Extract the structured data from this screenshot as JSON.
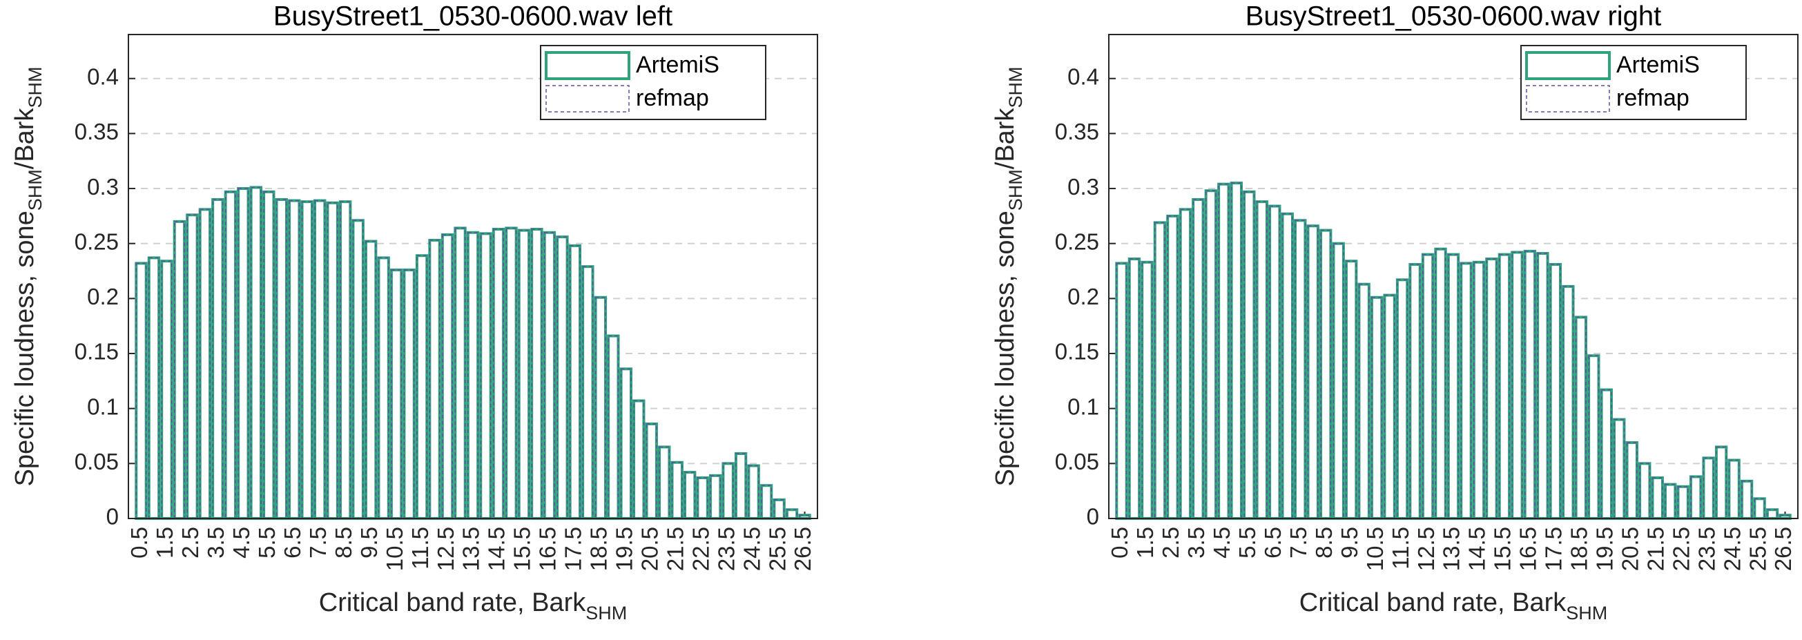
{
  "chart_data": [
    {
      "type": "bar",
      "title": "BusyStreet1_0530-0600.wav left",
      "xlabel": [
        "Critical band rate, Bark",
        "SHM"
      ],
      "ylabel": [
        "Specific loudness, sone",
        "SHM",
        "/Bark",
        "SHM"
      ],
      "x": [
        0.5,
        1,
        1.5,
        2,
        2.5,
        3,
        3.5,
        4,
        4.5,
        5,
        5.5,
        6,
        6.5,
        7,
        7.5,
        8,
        8.5,
        9,
        9.5,
        10,
        10.5,
        11,
        11.5,
        12,
        12.5,
        13,
        13.5,
        14,
        14.5,
        15,
        15.5,
        16,
        16.5,
        17,
        17.5,
        18,
        18.5,
        19,
        19.5,
        20,
        20.5,
        21,
        21.5,
        22,
        22.5,
        23,
        23.5,
        24,
        24.5,
        25,
        25.5,
        26,
        26.5
      ],
      "series": [
        {
          "name": "ArtemiS",
          "color": "#2fa37c",
          "values": [
            0.232,
            0.237,
            0.234,
            0.27,
            0.276,
            0.281,
            0.29,
            0.297,
            0.3,
            0.301,
            0.297,
            0.29,
            0.289,
            0.288,
            0.289,
            0.287,
            0.288,
            0.271,
            0.252,
            0.237,
            0.226,
            0.226,
            0.239,
            0.253,
            0.258,
            0.264,
            0.26,
            0.259,
            0.263,
            0.264,
            0.262,
            0.263,
            0.26,
            0.256,
            0.248,
            0.229,
            0.201,
            0.166,
            0.136,
            0.107,
            0.086,
            0.065,
            0.051,
            0.042,
            0.037,
            0.039,
            0.05,
            0.059,
            0.048,
            0.03,
            0.017,
            0.008,
            0.003
          ]
        },
        {
          "name": "refmap",
          "color": "#5e4fa2",
          "values": [
            0.232,
            0.237,
            0.234,
            0.27,
            0.276,
            0.281,
            0.29,
            0.297,
            0.3,
            0.301,
            0.297,
            0.29,
            0.289,
            0.288,
            0.289,
            0.287,
            0.288,
            0.271,
            0.252,
            0.237,
            0.226,
            0.226,
            0.239,
            0.253,
            0.258,
            0.264,
            0.26,
            0.259,
            0.263,
            0.264,
            0.262,
            0.263,
            0.26,
            0.256,
            0.248,
            0.229,
            0.201,
            0.166,
            0.136,
            0.107,
            0.086,
            0.065,
            0.051,
            0.042,
            0.037,
            0.039,
            0.05,
            0.059,
            0.048,
            0.03,
            0.017,
            0.008,
            0.003
          ]
        }
      ],
      "xlim": [
        0,
        27
      ],
      "ylim": [
        0,
        0.44
      ],
      "xticks": [
        0.5,
        1.5,
        2.5,
        3.5,
        4.5,
        5.5,
        6.5,
        7.5,
        8.5,
        9.5,
        10.5,
        11.5,
        12.5,
        13.5,
        14.5,
        15.5,
        16.5,
        17.5,
        18.5,
        19.5,
        20.5,
        21.5,
        22.5,
        23.5,
        24.5,
        25.5,
        26.5
      ],
      "yticks": [
        0,
        0.05,
        0.1,
        0.15,
        0.2,
        0.25,
        0.3,
        0.35,
        0.4
      ],
      "grid": true,
      "legend": "upper right"
    },
    {
      "type": "bar",
      "title": "BusyStreet1_0530-0600.wav right",
      "xlabel": [
        "Critical band rate, Bark",
        "SHM"
      ],
      "ylabel": [
        "Specific loudness, sone",
        "SHM",
        "/Bark",
        "SHM"
      ],
      "x": [
        0.5,
        1,
        1.5,
        2,
        2.5,
        3,
        3.5,
        4,
        4.5,
        5,
        5.5,
        6,
        6.5,
        7,
        7.5,
        8,
        8.5,
        9,
        9.5,
        10,
        10.5,
        11,
        11.5,
        12,
        12.5,
        13,
        13.5,
        14,
        14.5,
        15,
        15.5,
        16,
        16.5,
        17,
        17.5,
        18,
        18.5,
        19,
        19.5,
        20,
        20.5,
        21,
        21.5,
        22,
        22.5,
        23,
        23.5,
        24,
        24.5,
        25,
        25.5,
        26,
        26.5
      ],
      "series": [
        {
          "name": "ArtemiS",
          "color": "#2fa37c",
          "values": [
            0.232,
            0.236,
            0.233,
            0.269,
            0.275,
            0.281,
            0.29,
            0.298,
            0.304,
            0.305,
            0.297,
            0.288,
            0.284,
            0.277,
            0.271,
            0.266,
            0.262,
            0.25,
            0.234,
            0.213,
            0.201,
            0.203,
            0.217,
            0.231,
            0.24,
            0.245,
            0.24,
            0.232,
            0.233,
            0.236,
            0.24,
            0.242,
            0.243,
            0.241,
            0.231,
            0.211,
            0.183,
            0.148,
            0.117,
            0.09,
            0.069,
            0.05,
            0.037,
            0.031,
            0.029,
            0.038,
            0.055,
            0.065,
            0.053,
            0.034,
            0.018,
            0.008,
            0.003
          ]
        },
        {
          "name": "refmap",
          "color": "#5e4fa2",
          "values": [
            0.232,
            0.236,
            0.233,
            0.269,
            0.275,
            0.281,
            0.29,
            0.298,
            0.304,
            0.305,
            0.297,
            0.288,
            0.284,
            0.277,
            0.271,
            0.266,
            0.262,
            0.25,
            0.234,
            0.213,
            0.201,
            0.203,
            0.217,
            0.231,
            0.24,
            0.245,
            0.24,
            0.232,
            0.233,
            0.236,
            0.24,
            0.242,
            0.243,
            0.241,
            0.231,
            0.211,
            0.183,
            0.148,
            0.117,
            0.09,
            0.069,
            0.05,
            0.037,
            0.031,
            0.029,
            0.038,
            0.055,
            0.065,
            0.053,
            0.034,
            0.018,
            0.008,
            0.003
          ]
        }
      ],
      "xlim": [
        0,
        27
      ],
      "ylim": [
        0,
        0.44
      ],
      "xticks": [
        0.5,
        1.5,
        2.5,
        3.5,
        4.5,
        5.5,
        6.5,
        7.5,
        8.5,
        9.5,
        10.5,
        11.5,
        12.5,
        13.5,
        14.5,
        15.5,
        16.5,
        17.5,
        18.5,
        19.5,
        20.5,
        21.5,
        22.5,
        23.5,
        24.5,
        25.5,
        26.5
      ],
      "yticks": [
        0,
        0.05,
        0.1,
        0.15,
        0.2,
        0.25,
        0.3,
        0.35,
        0.4
      ],
      "grid": true,
      "legend": "upper right"
    }
  ]
}
